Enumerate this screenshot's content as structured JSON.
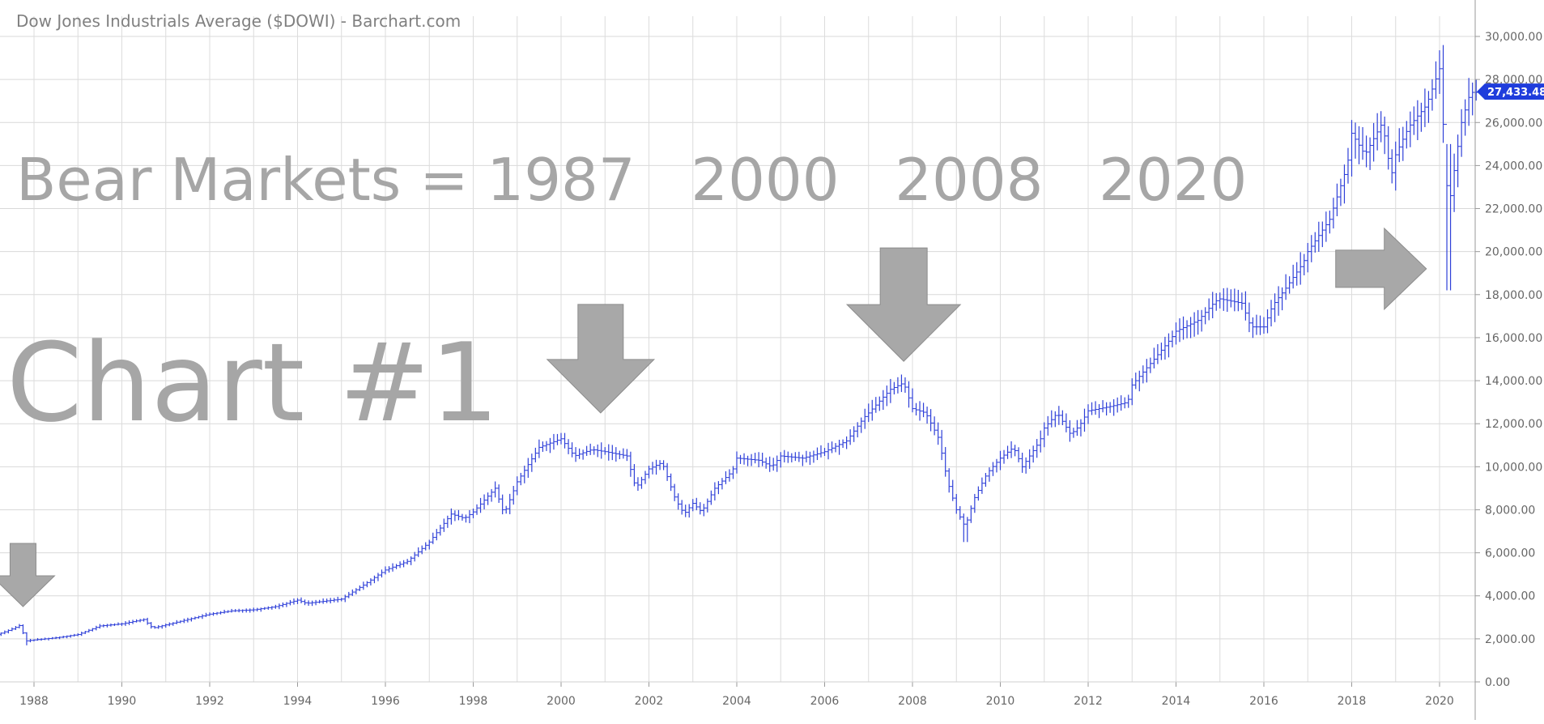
{
  "chart_data": {
    "type": "bar",
    "style": "OHLC monthly bars",
    "title": "Dow Jones Industrials Average ($DOWI) - Barchart.com",
    "xlabel": "",
    "ylabel": "",
    "x_ticks": [
      "1988",
      "1990",
      "1992",
      "1994",
      "1996",
      "1998",
      "2000",
      "2002",
      "2004",
      "2006",
      "2008",
      "2010",
      "2012",
      "2014",
      "2016",
      "2018",
      "2020"
    ],
    "y_ticks": [
      "0.00",
      "2,000.00",
      "4,000.00",
      "6,000.00",
      "8,000.00",
      "10,000.00",
      "12,000.00",
      "14,000.00",
      "16,000.00",
      "18,000.00",
      "20,000.00",
      "22,000.00",
      "24,000.00",
      "26,000.00",
      "28,000.00",
      "30,000.00"
    ],
    "xlim": [
      1987.0,
      2020.85
    ],
    "ylim": [
      0,
      30000
    ],
    "grid": true,
    "axis_position": "right",
    "last_price": "27,433.48",
    "last_price_value": 27433.48,
    "series_color": "#2e3fd8",
    "annotations": {
      "bear_markets": "Bear Markets = 1987   2000   2008   2020",
      "chart_number": "Chart #1",
      "arrow_color": "#a8a8a8"
    },
    "arrows": [
      {
        "direction": "down",
        "year": 1987.75,
        "tip_value": 3500
      },
      {
        "direction": "down",
        "year": 2000.9,
        "tip_value": 12500
      },
      {
        "direction": "down",
        "year": 2007.8,
        "tip_value": 14900
      },
      {
        "direction": "right",
        "year": 2019.7,
        "value": 19200
      }
    ],
    "series": [
      {
        "values_note": "monthly key points (year, close) interpolated",
        "points": [
          [
            1987.0,
            2100
          ],
          [
            1987.3,
            2300
          ],
          [
            1987.55,
            2500
          ],
          [
            1987.7,
            2650
          ],
          [
            1987.8,
            1900
          ],
          [
            1988.0,
            1950
          ],
          [
            1988.5,
            2050
          ],
          [
            1989.0,
            2200
          ],
          [
            1989.5,
            2600
          ],
          [
            1990.0,
            2700
          ],
          [
            1990.5,
            2900
          ],
          [
            1990.7,
            2500
          ],
          [
            1991.0,
            2650
          ],
          [
            1991.5,
            2900
          ],
          [
            1992.0,
            3150
          ],
          [
            1992.5,
            3300
          ],
          [
            1993.0,
            3350
          ],
          [
            1993.5,
            3500
          ],
          [
            1994.0,
            3800
          ],
          [
            1994.2,
            3650
          ],
          [
            1994.8,
            3800
          ],
          [
            1995.0,
            3850
          ],
          [
            1995.5,
            4500
          ],
          [
            1996.0,
            5200
          ],
          [
            1996.5,
            5600
          ],
          [
            1997.0,
            6500
          ],
          [
            1997.5,
            7800
          ],
          [
            1997.8,
            7600
          ],
          [
            1998.0,
            7900
          ],
          [
            1998.5,
            9000
          ],
          [
            1998.7,
            7800
          ],
          [
            1999.0,
            9300
          ],
          [
            1999.5,
            10900
          ],
          [
            2000.0,
            11300
          ],
          [
            2000.3,
            10500
          ],
          [
            2000.7,
            10800
          ],
          [
            2001.0,
            10700
          ],
          [
            2001.5,
            10500
          ],
          [
            2001.7,
            9000
          ],
          [
            2002.0,
            9900
          ],
          [
            2002.3,
            10200
          ],
          [
            2002.6,
            8500
          ],
          [
            2002.8,
            7800
          ],
          [
            2003.0,
            8300
          ],
          [
            2003.2,
            7900
          ],
          [
            2003.5,
            9000
          ],
          [
            2003.9,
            9800
          ],
          [
            2004.0,
            10400
          ],
          [
            2004.5,
            10300
          ],
          [
            2004.8,
            10000
          ],
          [
            2005.0,
            10500
          ],
          [
            2005.5,
            10400
          ],
          [
            2006.0,
            10700
          ],
          [
            2006.5,
            11200
          ],
          [
            2006.9,
            12300
          ],
          [
            2007.0,
            12500
          ],
          [
            2007.5,
            13600
          ],
          [
            2007.8,
            13900
          ],
          [
            2008.0,
            12700
          ],
          [
            2008.3,
            12500
          ],
          [
            2008.6,
            11300
          ],
          [
            2008.8,
            9300
          ],
          [
            2009.0,
            8000
          ],
          [
            2009.2,
            7200
          ],
          [
            2009.4,
            8500
          ],
          [
            2009.7,
            9700
          ],
          [
            2010.0,
            10400
          ],
          [
            2010.3,
            10900
          ],
          [
            2010.5,
            10000
          ],
          [
            2010.9,
            11200
          ],
          [
            2011.0,
            11800
          ],
          [
            2011.3,
            12500
          ],
          [
            2011.6,
            11500
          ],
          [
            2011.8,
            11900
          ],
          [
            2012.0,
            12600
          ],
          [
            2012.5,
            12800
          ],
          [
            2012.9,
            13000
          ],
          [
            2013.0,
            13800
          ],
          [
            2013.5,
            15000
          ],
          [
            2013.9,
            16000
          ],
          [
            2014.0,
            16300
          ],
          [
            2014.5,
            16800
          ],
          [
            2014.9,
            17700
          ],
          [
            2015.0,
            17800
          ],
          [
            2015.5,
            17600
          ],
          [
            2015.7,
            16500
          ],
          [
            2016.0,
            16500
          ],
          [
            2016.2,
            17500
          ],
          [
            2016.5,
            18300
          ],
          [
            2016.9,
            19500
          ],
          [
            2017.0,
            20000
          ],
          [
            2017.5,
            21500
          ],
          [
            2017.9,
            24000
          ],
          [
            2018.0,
            25500
          ],
          [
            2018.3,
            24500
          ],
          [
            2018.7,
            26000
          ],
          [
            2018.9,
            23500
          ],
          [
            2019.0,
            24500
          ],
          [
            2019.3,
            25800
          ],
          [
            2019.7,
            26800
          ],
          [
            2020.0,
            28500
          ],
          [
            2020.1,
            25400
          ],
          [
            2020.2,
            21900
          ],
          [
            2020.35,
            24000
          ],
          [
            2020.5,
            26000
          ],
          [
            2020.7,
            27400
          ]
        ]
      }
    ]
  }
}
